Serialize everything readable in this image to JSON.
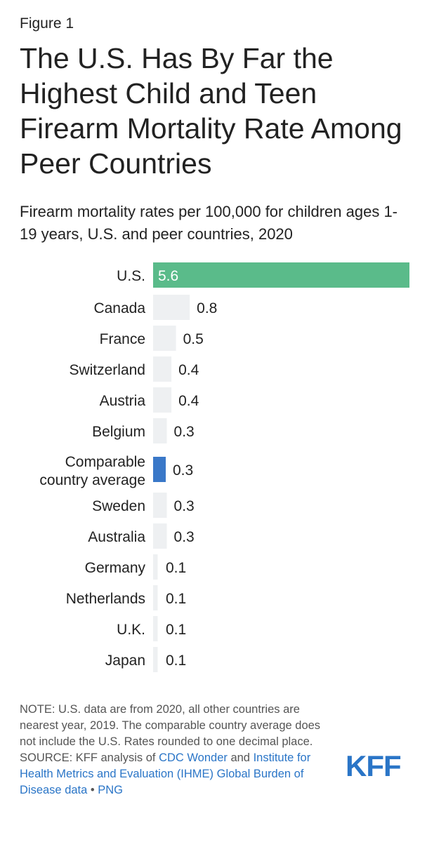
{
  "figure_label": "Figure 1",
  "title": "The U.S. Has By Far the Highest Child and Teen Firearm Mortality Rate Among Peer Countries",
  "subtitle": "Firearm mortality rates per 100,000 for children ages 1-19 years, U.S. and peer countries, 2020",
  "colors": {
    "us": "#5abb8a",
    "average": "#3a78c8",
    "other": "#eef0f2",
    "us_label": "#ffffff",
    "label": "#222222",
    "link": "#2a75c7"
  },
  "chart_data": {
    "type": "bar",
    "orientation": "horizontal",
    "title": "The U.S. Has By Far the Highest Child and Teen Firearm Mortality Rate Among Peer Countries",
    "subtitle": "Firearm mortality rates per 100,000 for children ages 1-19 years, U.S. and peer countries, 2020",
    "categories": [
      "U.S.",
      "Canada",
      "France",
      "Switzerland",
      "Austria",
      "Belgium",
      "Comparable country average",
      "Sweden",
      "Australia",
      "Germany",
      "Netherlands",
      "U.K.",
      "Japan"
    ],
    "values": [
      5.6,
      0.8,
      0.5,
      0.4,
      0.4,
      0.3,
      0.3,
      0.3,
      0.3,
      0.1,
      0.1,
      0.1,
      0.1
    ],
    "value_labels": [
      "5.6",
      "0.8",
      "0.5",
      "0.4",
      "0.4",
      "0.3",
      "0.3",
      "0.3",
      "0.3",
      "0.1",
      "0.1",
      "0.1",
      "0.1"
    ],
    "highlight": {
      "U.S.": "us",
      "Comparable country average": "average"
    },
    "xlim": [
      0,
      5.6
    ],
    "xlabel": "",
    "ylabel": "",
    "grid": false
  },
  "note": {
    "text": "NOTE: U.S. data are from 2020, all other countries are nearest year, 2019. The comparable country average does not include the U.S. Rates rounded to one decimal place.",
    "source_prefix": "SOURCE: KFF analysis of ",
    "link1": "CDC Wonder",
    "and": " and ",
    "link2": "Institute for Health Metrics and Evaluation (IHME) Global Burden of Disease data",
    "separator": " • ",
    "link3": "PNG"
  },
  "logo": "KFF"
}
